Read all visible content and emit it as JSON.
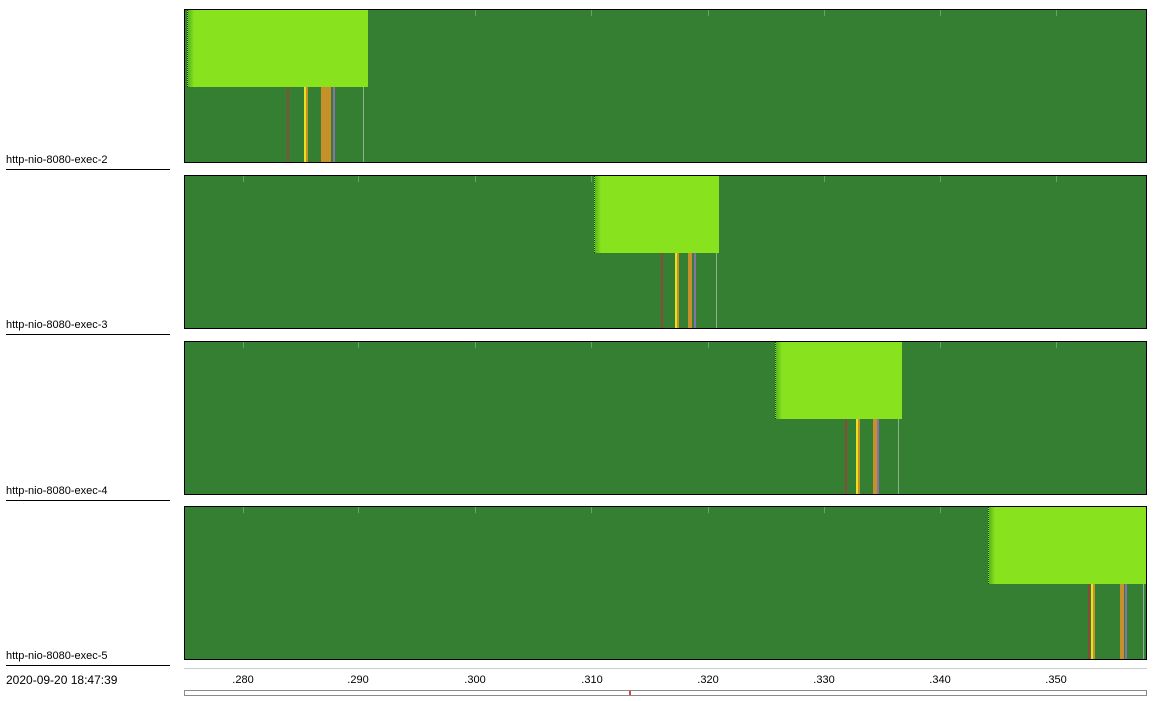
{
  "threads": [
    {
      "name": "http-nio-8080-exec-2"
    },
    {
      "name": "http-nio-8080-exec-3"
    },
    {
      "name": "http-nio-8080-exec-4"
    },
    {
      "name": "http-nio-8080-exec-5"
    }
  ],
  "timeline": {
    "timestamp": "2020-09-20 18:47:39",
    "ticks": [
      ".280",
      ".290",
      ".300",
      ".310",
      ".320",
      ".330",
      ".340",
      ".350"
    ]
  },
  "colors": {
    "lane": "#357f32",
    "burst": "#88e21e",
    "marker_brown": "#8b4a3a",
    "marker_yellow": "#e8e21e",
    "marker_orange": "#c8902a",
    "marker_purple": "#8a70b0",
    "marker_light": "#8fb08a"
  }
}
